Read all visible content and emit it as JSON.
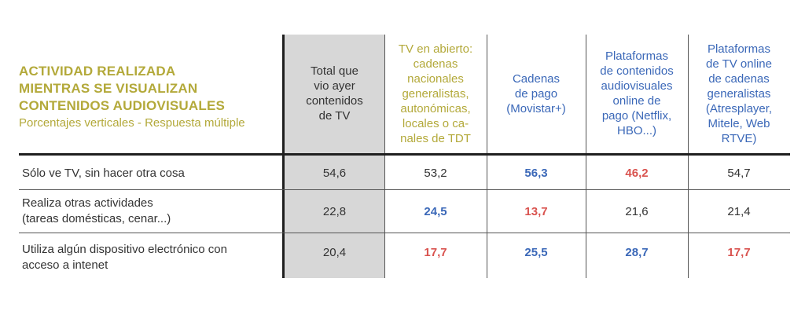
{
  "header": {
    "title_lines": [
      "ACTIVIDAD REALIZADA",
      "MIENTRAS SE VISUALIZAN",
      "CONTENIDOS AUDIOVISUALES"
    ],
    "subtitle": "Porcentajes verticales - Respuesta múltiple"
  },
  "columns": [
    {
      "lines": [
        "Total que",
        "vio ayer",
        "contenidos",
        "de TV"
      ],
      "color": "#333333"
    },
    {
      "lines": [
        "TV en abierto:",
        "cadenas",
        "nacionales",
        "generalistas,",
        "autonómicas,",
        "locales o ca-",
        "nales de TDT"
      ],
      "color": "#b3a93a"
    },
    {
      "lines": [
        "Cadenas",
        "de pago",
        "(Movistar+)"
      ],
      "color": "#3b68b8"
    },
    {
      "lines": [
        "Plataformas",
        "de contenidos",
        "audiovisuales",
        "online de",
        "pago (Netflix,",
        "HBO...)"
      ],
      "color": "#3b68b8"
    },
    {
      "lines": [
        "Plataformas",
        "de TV online",
        "de cadenas",
        "generalistas",
        "(Atresplayer,",
        "Mitele, Web",
        "RTVE)"
      ],
      "color": "#3b68b8"
    }
  ],
  "rows": [
    {
      "label_lines": [
        "Sólo ve TV, sin hacer otra cosa"
      ],
      "values": [
        "54,6",
        "53,2",
        "56,3",
        "46,2",
        "54,7"
      ],
      "styles": [
        "plain",
        "plain",
        "blue",
        "red",
        "plain"
      ]
    },
    {
      "label_lines": [
        "Realiza otras actividades",
        "(tareas domésticas, cenar...)"
      ],
      "values": [
        "22,8",
        "24,5",
        "13,7",
        "21,6",
        "21,4"
      ],
      "styles": [
        "plain",
        "blue",
        "red",
        "plain",
        "plain"
      ]
    },
    {
      "label_lines": [
        "Utiliza algún dispositivo electrónico con",
        "acceso a intenet"
      ],
      "values": [
        "20,4",
        "17,7",
        "25,5",
        "28,7",
        "17,7"
      ],
      "styles": [
        "plain",
        "red",
        "blue",
        "blue",
        "red"
      ]
    }
  ],
  "colors": {
    "olive": "#b3a93a",
    "blue": "#3b68b8",
    "red": "#d9534f",
    "shade": "#d7d7d7"
  }
}
